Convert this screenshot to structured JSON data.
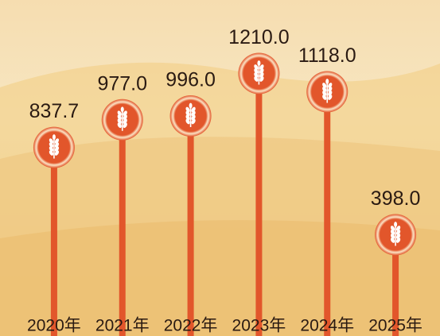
{
  "chart_data": {
    "type": "lollipop",
    "categories": [
      "2020年",
      "2021年",
      "2022年",
      "2023年",
      "2024年",
      "2025年"
    ],
    "values": [
      837.7,
      977.0,
      996.0,
      1210.0,
      1118.0,
      398.0
    ],
    "value_labels": [
      "837.7",
      "977.0",
      "996.0",
      "1210.0",
      "1118.0",
      "398.0"
    ],
    "color": "#e2562b"
  }
}
